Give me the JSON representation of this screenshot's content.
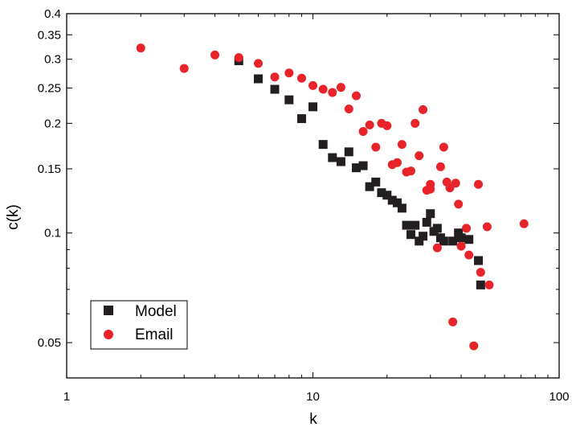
{
  "chart_data": {
    "type": "scatter",
    "xlabel": "k",
    "ylabel": "c(k)",
    "xscale": "log",
    "yscale": "log",
    "xlim": [
      1,
      100
    ],
    "ylim": [
      0.04,
      0.4
    ],
    "xticks": [
      {
        "value": 1,
        "label": "1"
      },
      {
        "value": 10,
        "label": "10"
      },
      {
        "value": 100,
        "label": "100"
      }
    ],
    "yticks": [
      {
        "value": 0.05,
        "label": "0.05"
      },
      {
        "value": 0.1,
        "label": "0.1"
      },
      {
        "value": 0.15,
        "label": "0.15"
      },
      {
        "value": 0.2,
        "label": "0.2"
      },
      {
        "value": 0.25,
        "label": "0.25"
      },
      {
        "value": 0.3,
        "label": "0.3"
      },
      {
        "value": 0.35,
        "label": "0.35"
      },
      {
        "value": 0.4,
        "label": "0.4"
      }
    ],
    "grid": false,
    "legend_position": "bottom-left",
    "series": [
      {
        "name": "Model",
        "marker": "square",
        "color": "#231f20",
        "points": [
          [
            5,
            0.297
          ],
          [
            6,
            0.265
          ],
          [
            7,
            0.248
          ],
          [
            8,
            0.232
          ],
          [
            9,
            0.206
          ],
          [
            10,
            0.222
          ],
          [
            11,
            0.175
          ],
          [
            12,
            0.161
          ],
          [
            13,
            0.157
          ],
          [
            14,
            0.167
          ],
          [
            15,
            0.151
          ],
          [
            16,
            0.153
          ],
          [
            17,
            0.134
          ],
          [
            18,
            0.138
          ],
          [
            19,
            0.129
          ],
          [
            20,
            0.127
          ],
          [
            21,
            0.123
          ],
          [
            22,
            0.121
          ],
          [
            23,
            0.117
          ],
          [
            24,
            0.105
          ],
          [
            25,
            0.099
          ],
          [
            26,
            0.105
          ],
          [
            27,
            0.095
          ],
          [
            28,
            0.098
          ],
          [
            29,
            0.107
          ],
          [
            30,
            0.113
          ],
          [
            31,
            0.101
          ],
          [
            32,
            0.103
          ],
          [
            33,
            0.097
          ],
          [
            34,
            0.095
          ],
          [
            37,
            0.095
          ],
          [
            39,
            0.1
          ],
          [
            40,
            0.097
          ],
          [
            43,
            0.096
          ],
          [
            47,
            0.084
          ],
          [
            48,
            0.072
          ]
        ]
      },
      {
        "name": "Email",
        "marker": "circle",
        "color": "#e8232a",
        "points": [
          [
            2,
            0.322
          ],
          [
            3,
            0.283
          ],
          [
            4,
            0.308
          ],
          [
            5,
            0.303
          ],
          [
            6,
            0.292
          ],
          [
            7,
            0.268
          ],
          [
            8,
            0.275
          ],
          [
            9,
            0.266
          ],
          [
            10,
            0.254
          ],
          [
            11,
            0.248
          ],
          [
            12,
            0.243
          ],
          [
            13,
            0.251
          ],
          [
            14,
            0.219
          ],
          [
            15,
            0.238
          ],
          [
            16,
            0.19
          ],
          [
            17,
            0.198
          ],
          [
            18,
            0.172
          ],
          [
            19,
            0.2
          ],
          [
            20,
            0.197
          ],
          [
            21,
            0.154
          ],
          [
            22,
            0.156
          ],
          [
            23,
            0.175
          ],
          [
            24,
            0.147
          ],
          [
            25,
            0.148
          ],
          [
            26,
            0.2
          ],
          [
            27,
            0.163
          ],
          [
            28,
            0.218
          ],
          [
            29,
            0.131
          ],
          [
            30,
            0.132
          ],
          [
            30,
            0.136
          ],
          [
            32,
            0.091
          ],
          [
            33,
            0.152
          ],
          [
            34,
            0.172
          ],
          [
            35,
            0.138
          ],
          [
            36,
            0.133
          ],
          [
            37,
            0.057
          ],
          [
            38,
            0.137
          ],
          [
            39,
            0.12
          ],
          [
            40,
            0.092
          ],
          [
            42,
            0.103
          ],
          [
            43,
            0.087
          ],
          [
            45,
            0.049
          ],
          [
            47,
            0.136
          ],
          [
            48,
            0.078
          ],
          [
            51,
            0.104
          ],
          [
            52,
            0.072
          ],
          [
            72,
            0.106
          ]
        ]
      }
    ]
  }
}
